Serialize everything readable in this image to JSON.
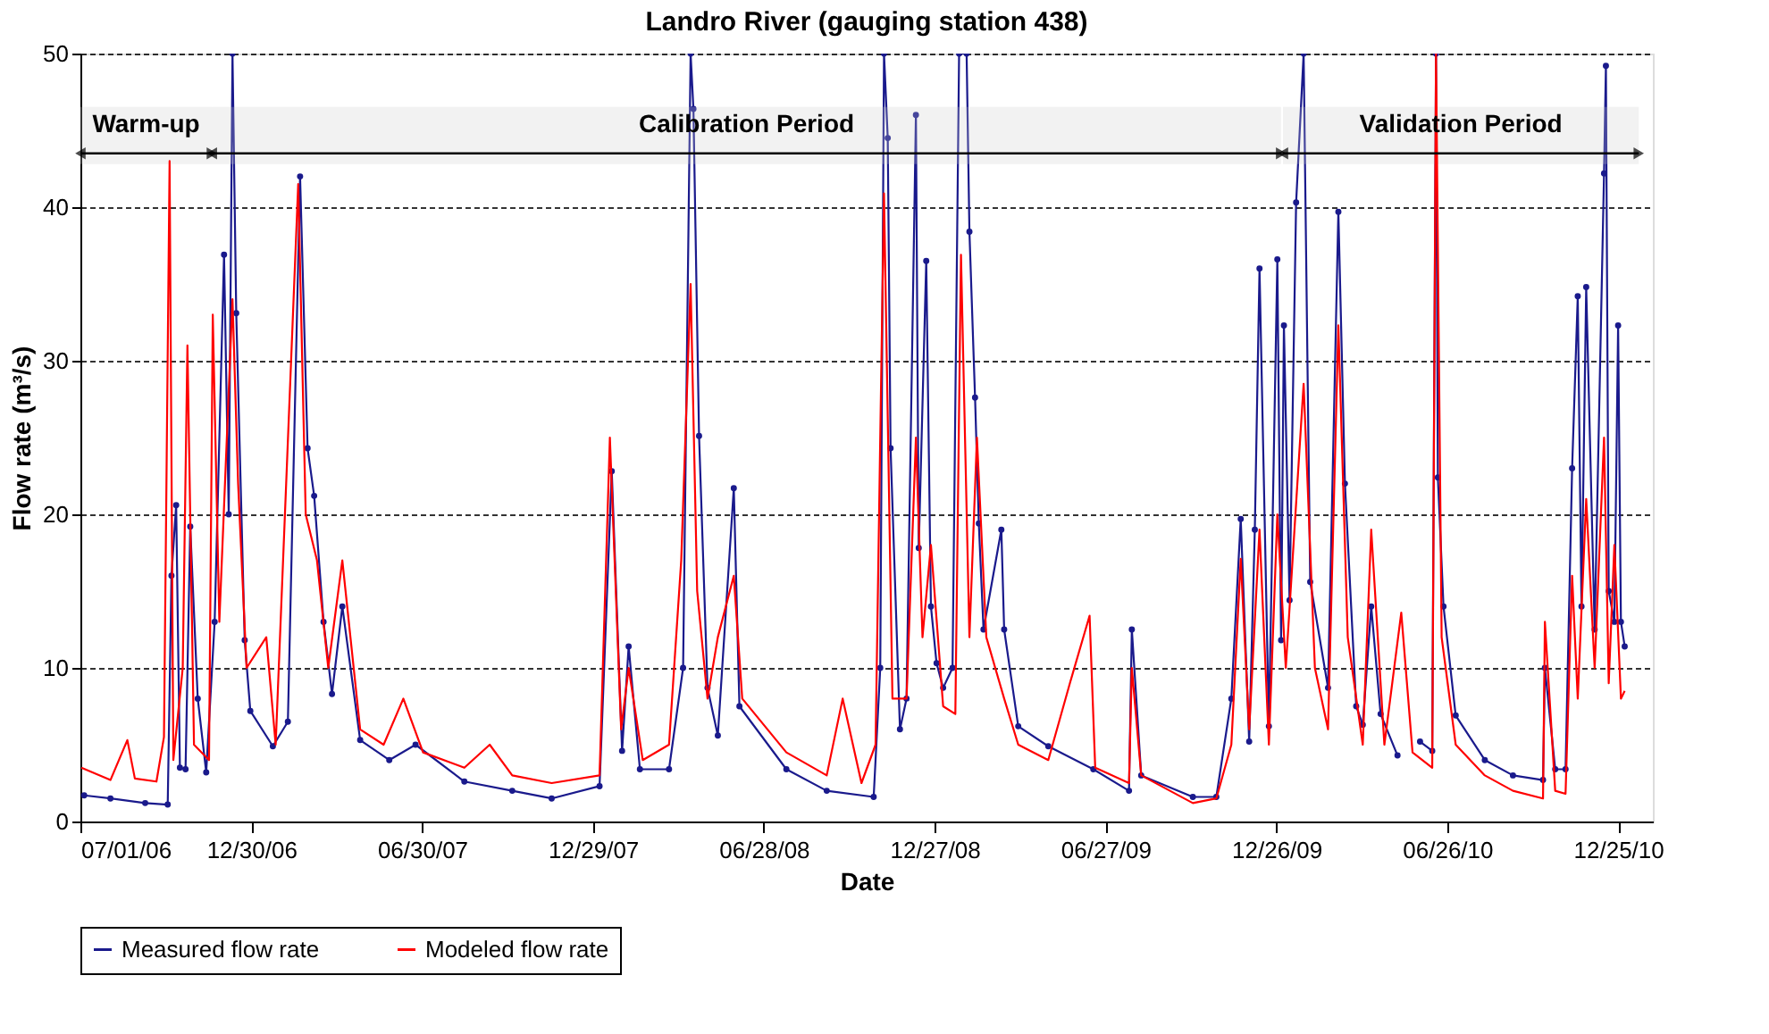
{
  "chart_data": {
    "type": "line",
    "title": "Landro River (gauging station 438)",
    "xlabel": "Date",
    "ylabel": "Flow rate (m³/s)",
    "xlim": [
      "2006-07-01",
      "2011-01-31"
    ],
    "xticks": [
      {
        "value": "2006-07-01",
        "label": "07/01/06"
      },
      {
        "value": "2006-12-30",
        "label": "12/30/06"
      },
      {
        "value": "2007-06-30",
        "label": "06/30/07"
      },
      {
        "value": "2007-12-29",
        "label": "12/29/07"
      },
      {
        "value": "2008-06-28",
        "label": "06/28/08"
      },
      {
        "value": "2008-12-27",
        "label": "12/27/08"
      },
      {
        "value": "2009-06-27",
        "label": "06/27/09"
      },
      {
        "value": "2009-12-26",
        "label": "12/26/09"
      },
      {
        "value": "2010-06-26",
        "label": "06/26/10"
      },
      {
        "value": "2010-12-25",
        "label": "12/25/10"
      }
    ],
    "ylim": [
      0,
      50
    ],
    "yticks": [
      0,
      10,
      20,
      30,
      40,
      50
    ],
    "grid": "y",
    "legend": "bottom",
    "bands": [
      {
        "axis": "x",
        "from": "2006-07-01",
        "to": "2006-11-18",
        "label": "Warm-up"
      },
      {
        "axis": "x",
        "from": "2006-11-18",
        "to": "2009-12-31",
        "label": "Calibration Period"
      },
      {
        "axis": "x",
        "from": "2010-01-02",
        "to": "2011-01-16",
        "label": "Validation Period"
      }
    ],
    "series": [
      {
        "name": "Measured flow rate",
        "color": "#1a1a8c",
        "marker": "circle",
        "x": [
          "2006-07-05",
          "2006-08-02",
          "2006-09-08",
          "2006-10-02",
          "2006-10-06",
          "2006-10-11",
          "2006-10-15",
          "2006-10-21",
          "2006-10-26",
          "2006-11-03",
          "2006-11-12",
          "2006-11-21",
          "2006-12-01",
          "2006-12-06",
          "2006-12-10",
          "2006-12-14",
          "2006-12-23",
          "2006-12-29",
          "2007-01-22",
          "2007-02-07",
          "2007-02-20",
          "2007-02-28",
          "2007-03-07",
          "2007-03-17",
          "2007-03-26",
          "2007-04-06",
          "2007-04-25",
          "2007-05-26",
          "2007-06-23",
          "2007-08-14",
          "2007-10-04",
          "2007-11-15",
          "2008-01-05",
          "2008-01-18",
          "2008-01-29",
          "2008-02-05",
          "2008-02-17",
          "2008-03-19",
          "2008-04-03",
          "2008-04-11",
          "2008-04-14",
          "2008-04-20",
          "2008-04-29",
          "2008-05-10",
          "2008-05-27",
          "2008-06-02",
          "2008-07-22",
          "2008-09-03",
          "2008-10-23",
          "2008-10-30",
          "2008-11-03",
          "2008-11-07",
          "2008-11-10",
          "2008-11-20",
          "2008-11-27",
          "2008-12-07",
          "2008-12-10",
          "2008-12-18",
          "2008-12-23",
          "2008-12-29",
          "2009-01-05",
          "2009-01-15",
          "2009-01-22",
          "2009-01-30",
          "2009-02-02",
          "2009-02-08",
          "2009-02-12",
          "2009-02-17",
          "2009-03-08",
          "2009-03-11",
          "2009-03-26",
          "2009-04-27",
          "2009-06-14",
          "2009-07-22",
          "2009-07-25",
          "2009-08-04",
          "2009-09-28",
          "2009-10-23",
          "2009-11-08",
          "2009-11-18",
          "2009-11-27",
          "2009-12-03",
          "2009-12-08",
          "2009-12-18",
          "2009-12-27",
          "2009-12-31",
          "2010-01-03",
          "2010-01-09",
          "2010-01-16",
          "2010-01-24",
          "2010-01-31",
          "2010-02-19",
          "2010-03-02",
          "2010-03-09",
          "2010-03-21",
          "2010-03-28",
          "2010-04-06",
          "2010-04-16",
          "2010-05-04",
          "2010-05-15",
          "2010-05-28",
          "2010-06-10",
          "2010-06-14",
          "2010-06-16",
          "2010-06-22",
          "2010-07-05",
          "2010-08-05",
          "2010-09-04",
          "2010-10-06",
          "2010-10-08",
          "2010-10-19",
          "2010-10-30",
          "2010-11-06",
          "2010-11-12",
          "2010-11-16",
          "2010-11-21",
          "2010-11-30",
          "2010-12-10",
          "2010-12-12",
          "2010-12-15",
          "2010-12-21",
          "2010-12-25",
          "2010-12-28",
          "2011-01-01"
        ],
        "values": [
          1.7,
          1.5,
          1.2,
          1.1,
          16,
          20.6,
          3.5,
          3.4,
          19.2,
          8,
          3.2,
          13,
          36.9,
          20,
          50,
          33.1,
          11.8,
          7.2,
          4.9,
          6.5,
          42,
          24.3,
          21.2,
          13,
          8.3,
          14,
          5.3,
          4,
          5,
          2.6,
          2,
          1.5,
          2.3,
          22.8,
          4.6,
          11.4,
          3.4,
          3.4,
          10,
          50,
          46.4,
          25.1,
          8.7,
          5.6,
          21.7,
          7.5,
          3.4,
          2,
          1.6,
          10,
          50,
          44.5,
          24.3,
          6,
          8,
          46,
          17.8,
          36.5,
          14,
          10.3,
          8.7,
          10,
          50,
          50,
          38.4,
          27.6,
          19.4,
          12.5,
          19,
          12.5,
          6.2,
          4.9,
          3.4,
          2,
          12.5,
          3,
          1.6,
          1.6,
          8,
          19.7,
          5.2,
          19,
          36,
          6.2,
          36.6,
          11.8,
          32.3,
          14.4,
          40.3,
          50,
          15.6,
          8.7,
          39.7,
          22,
          7.5,
          6.3,
          14,
          7,
          4.3,
          null,
          5.2,
          4.6,
          50,
          22.4,
          14,
          6.9,
          4,
          3,
          2.7,
          10,
          3.4,
          3.4,
          23,
          34.2,
          14,
          34.8,
          12.5,
          42.2,
          49.2,
          15,
          13,
          32.3,
          13,
          11.4
        ]
      },
      {
        "name": "Modeled flow rate",
        "color": "#ff0000",
        "marker": "none",
        "x": [
          "2006-07-02",
          "2006-08-02",
          "2006-08-20",
          "2006-08-28",
          "2006-09-20",
          "2006-09-28",
          "2006-10-04",
          "2006-10-08",
          "2006-10-18",
          "2006-10-23",
          "2006-10-30",
          "2006-11-15",
          "2006-11-19",
          "2006-11-26",
          "2006-12-10",
          "2006-12-16",
          "2006-12-25",
          "2007-01-15",
          "2007-01-25",
          "2007-02-18",
          "2007-02-26",
          "2007-03-10",
          "2007-03-22",
          "2007-04-06",
          "2007-04-25",
          "2007-05-20",
          "2007-06-10",
          "2007-07-01",
          "2007-08-14",
          "2007-09-10",
          "2007-10-04",
          "2007-11-15",
          "2008-01-05",
          "2008-01-16",
          "2008-01-28",
          "2008-02-05",
          "2008-02-20",
          "2008-03-19",
          "2008-04-01",
          "2008-04-11",
          "2008-04-18",
          "2008-04-29",
          "2008-05-10",
          "2008-05-27",
          "2008-06-05",
          "2008-07-22",
          "2008-09-03",
          "2008-09-20",
          "2008-10-10",
          "2008-10-25",
          "2008-11-03",
          "2008-11-12",
          "2008-11-27",
          "2008-12-07",
          "2008-12-14",
          "2008-12-23",
          "2009-01-05",
          "2009-01-18",
          "2009-01-24",
          "2009-02-02",
          "2009-02-10",
          "2009-02-20",
          "2009-03-11",
          "2009-03-26",
          "2009-04-27",
          "2009-05-20",
          "2009-06-10",
          "2009-06-16",
          "2009-07-22",
          "2009-07-25",
          "2009-08-04",
          "2009-09-28",
          "2009-10-23",
          "2009-11-08",
          "2009-11-18",
          "2009-11-27",
          "2009-12-08",
          "2009-12-18",
          "2009-12-27",
          "2010-01-05",
          "2010-01-24",
          "2010-02-05",
          "2010-02-19",
          "2010-03-02",
          "2010-03-12",
          "2010-03-28",
          "2010-04-06",
          "2010-04-20",
          "2010-05-08",
          "2010-05-20",
          "2010-06-10",
          "2010-06-14",
          "2010-06-20",
          "2010-07-05",
          "2010-08-05",
          "2010-09-04",
          "2010-10-06",
          "2010-10-08",
          "2010-10-19",
          "2010-10-30",
          "2010-11-06",
          "2010-11-12",
          "2010-11-21",
          "2010-11-30",
          "2010-12-10",
          "2010-12-15",
          "2010-12-21",
          "2010-12-28",
          "2011-01-01"
        ],
        "values": [
          3.5,
          2.7,
          5.3,
          2.8,
          2.6,
          5.5,
          43,
          4,
          10,
          31,
          5,
          4,
          33,
          13,
          34,
          22,
          10,
          12,
          5,
          41.5,
          20,
          17,
          10,
          17,
          6,
          5,
          8,
          4.5,
          3.5,
          5,
          3,
          2.5,
          3,
          25,
          6,
          10,
          4,
          5,
          17,
          35,
          15,
          8,
          12,
          16,
          8,
          4.5,
          3,
          8,
          2.5,
          5,
          40.9,
          8,
          8,
          25,
          12,
          18,
          7.5,
          7,
          36.9,
          12,
          25,
          12,
          8,
          5,
          4,
          9,
          13.4,
          3.5,
          2.5,
          10,
          3,
          1.2,
          1.5,
          5,
          17.1,
          6,
          19,
          5,
          20,
          10,
          28.5,
          10,
          6,
          32.3,
          12,
          5,
          19,
          5,
          13.6,
          4.5,
          3.5,
          50,
          12,
          5,
          3,
          2,
          1.5,
          13,
          2,
          1.8,
          16,
          8,
          21,
          10,
          25,
          9,
          18,
          8,
          8.5
        ]
      }
    ]
  }
}
